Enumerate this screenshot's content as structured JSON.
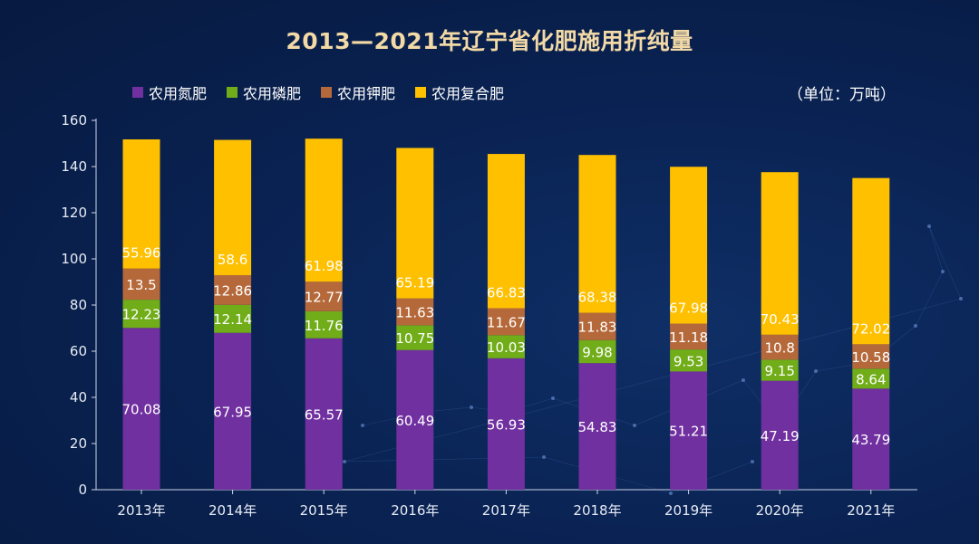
{
  "chart_data": {
    "type": "bar",
    "stacked": true,
    "title": "2013—2021年辽宁省化肥施用折纯量",
    "unit_label": "（单位：万吨）",
    "categories": [
      "2013年",
      "2014年",
      "2015年",
      "2016年",
      "2017年",
      "2018年",
      "2019年",
      "2020年",
      "2021年"
    ],
    "series": [
      {
        "name": "农用氮肥",
        "color": "#7030a0",
        "values": [
          70.08,
          67.95,
          65.57,
          60.49,
          56.93,
          54.83,
          51.21,
          47.19,
          43.79
        ]
      },
      {
        "name": "农用磷肥",
        "color": "#70ad19",
        "values": [
          12.23,
          12.14,
          11.76,
          10.75,
          10.03,
          9.98,
          9.53,
          9.15,
          8.64
        ]
      },
      {
        "name": "农用钾肥",
        "color": "#b5693a",
        "values": [
          13.5,
          12.86,
          12.77,
          11.63,
          11.67,
          11.83,
          11.18,
          10.8,
          10.58
        ]
      },
      {
        "name": "农用复合肥",
        "color": "#ffc000",
        "values": [
          55.96,
          58.6,
          61.98,
          65.19,
          66.83,
          68.38,
          67.98,
          70.43,
          72.02
        ]
      }
    ],
    "ylim": [
      0,
      160
    ],
    "yticks": [
      0,
      20,
      40,
      60,
      80,
      100,
      120,
      140,
      160
    ],
    "grid": false,
    "legend_position": "top-left"
  }
}
